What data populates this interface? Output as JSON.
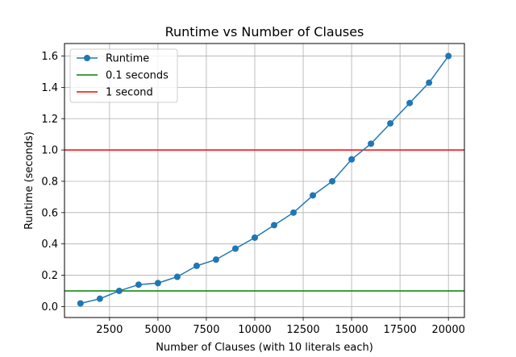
{
  "chart_data": {
    "type": "line",
    "title": "Runtime vs Number of Clauses",
    "xlabel": "Number of Clauses (with 10 literals each)",
    "ylabel": "Runtime (seconds)",
    "xlim": [
      175,
      20825
    ],
    "ylim": [
      -0.07,
      1.68
    ],
    "xticks": [
      2500,
      5000,
      7500,
      10000,
      12500,
      15000,
      17500,
      20000
    ],
    "xtick_labels": [
      "2500",
      "5000",
      "7500",
      "10000",
      "12500",
      "15000",
      "17500",
      "20000"
    ],
    "yticks": [
      0.0,
      0.2,
      0.4,
      0.6,
      0.8,
      1.0,
      1.2,
      1.4,
      1.6
    ],
    "ytick_labels": [
      "0.0",
      "0.2",
      "0.4",
      "0.6",
      "0.8",
      "1.0",
      "1.2",
      "1.4",
      "1.6"
    ],
    "grid": true,
    "legend_position": "top-left",
    "series": [
      {
        "name": "Runtime",
        "color": "#1f77b4",
        "marker": "circle",
        "x": [
          1000,
          2000,
          3000,
          4000,
          5000,
          6000,
          7000,
          8000,
          9000,
          10000,
          11000,
          12000,
          13000,
          14000,
          15000,
          16000,
          17000,
          18000,
          19000,
          20000
        ],
        "y": [
          0.02,
          0.05,
          0.1,
          0.14,
          0.15,
          0.19,
          0.26,
          0.3,
          0.37,
          0.44,
          0.52,
          0.6,
          0.71,
          0.8,
          0.94,
          1.04,
          1.17,
          1.3,
          1.43,
          1.6
        ]
      }
    ],
    "reference_lines": [
      {
        "name": "0.1 seconds",
        "y": 0.1,
        "color": "#008000"
      },
      {
        "name": "1 second",
        "y": 1.0,
        "color": "#ff0000"
      }
    ]
  }
}
